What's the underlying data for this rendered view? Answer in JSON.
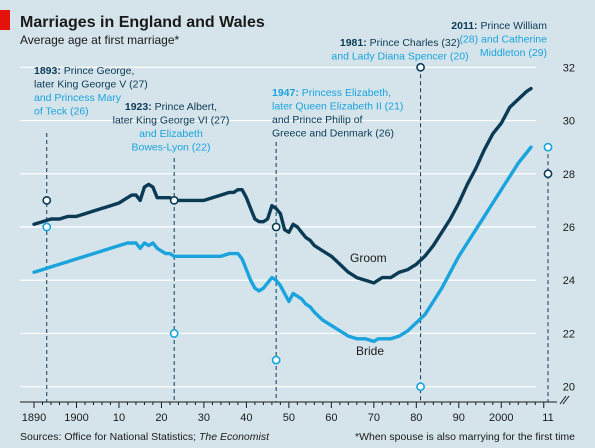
{
  "chart_data": {
    "type": "line",
    "title": "Marriages in England and Wales",
    "subtitle": "Average age at first marriage*",
    "xlabel": "",
    "ylabel": "",
    "xlim": [
      1890,
      2011
    ],
    "ylim": [
      19.5,
      32.5
    ],
    "grid": true,
    "x_tick_labels": [
      "1890",
      "1900",
      "10",
      "20",
      "30",
      "40",
      "50",
      "60",
      "70",
      "80",
      "90",
      "2000",
      "11"
    ],
    "y_ticks": [
      20,
      22,
      24,
      26,
      28,
      30,
      32
    ],
    "colors": {
      "groom": "#0b3a55",
      "bride": "#1aa3dd",
      "background": "#d5e4eb",
      "red_tag": "#e3120b"
    },
    "series": [
      {
        "name": "Groom",
        "key": "groom",
        "x": [
          1890,
          1892,
          1894,
          1896,
          1898,
          1900,
          1902,
          1904,
          1906,
          1908,
          1910,
          1912,
          1913,
          1914,
          1915,
          1916,
          1917,
          1918,
          1919,
          1920,
          1921,
          1922,
          1923,
          1924,
          1926,
          1928,
          1930,
          1932,
          1934,
          1936,
          1937,
          1938,
          1939,
          1940,
          1941,
          1942,
          1943,
          1944,
          1945,
          1946,
          1947,
          1948,
          1949,
          1950,
          1951,
          1952,
          1953,
          1954,
          1955,
          1956,
          1958,
          1960,
          1962,
          1964,
          1966,
          1968,
          1970,
          1971,
          1972,
          1974,
          1976,
          1978,
          1980,
          1982,
          1984,
          1986,
          1988,
          1990,
          1992,
          1994,
          1996,
          1998,
          2000,
          2002,
          2004,
          2006,
          2007
        ],
        "y": [
          26.1,
          26.2,
          26.3,
          26.3,
          26.4,
          26.4,
          26.5,
          26.6,
          26.7,
          26.8,
          26.9,
          27.1,
          27.2,
          27.2,
          27.0,
          27.5,
          27.6,
          27.5,
          27.1,
          27.1,
          27.1,
          27.1,
          27.0,
          27.0,
          27.0,
          27.0,
          27.0,
          27.1,
          27.2,
          27.3,
          27.3,
          27.4,
          27.4,
          27.1,
          26.7,
          26.3,
          26.2,
          26.2,
          26.3,
          26.8,
          26.7,
          26.5,
          25.9,
          25.8,
          26.1,
          26.0,
          25.8,
          25.6,
          25.5,
          25.3,
          25.1,
          24.9,
          24.6,
          24.3,
          24.1,
          24.0,
          23.9,
          24.0,
          24.1,
          24.1,
          24.3,
          24.4,
          24.6,
          24.9,
          25.3,
          25.8,
          26.3,
          26.9,
          27.6,
          28.2,
          28.9,
          29.5,
          29.9,
          30.5,
          30.8,
          31.1,
          31.2
        ]
      },
      {
        "name": "Bride",
        "key": "bride",
        "x": [
          1890,
          1892,
          1894,
          1896,
          1898,
          1900,
          1902,
          1904,
          1906,
          1908,
          1910,
          1912,
          1914,
          1915,
          1916,
          1917,
          1918,
          1919,
          1920,
          1921,
          1922,
          1923,
          1924,
          1926,
          1928,
          1930,
          1932,
          1934,
          1936,
          1938,
          1939,
          1940,
          1941,
          1942,
          1943,
          1944,
          1945,
          1946,
          1947,
          1948,
          1949,
          1950,
          1951,
          1952,
          1953,
          1954,
          1955,
          1956,
          1958,
          1960,
          1962,
          1964,
          1966,
          1968,
          1970,
          1971,
          1972,
          1974,
          1976,
          1978,
          1980,
          1982,
          1984,
          1986,
          1988,
          1990,
          1992,
          1994,
          1996,
          1998,
          2000,
          2002,
          2004,
          2006,
          2007
        ],
        "y": [
          24.3,
          24.4,
          24.5,
          24.6,
          24.7,
          24.8,
          24.9,
          25.0,
          25.1,
          25.2,
          25.3,
          25.4,
          25.4,
          25.2,
          25.4,
          25.3,
          25.4,
          25.2,
          25.1,
          25.0,
          25.0,
          24.9,
          24.9,
          24.9,
          24.9,
          24.9,
          24.9,
          24.9,
          25.0,
          25.0,
          24.8,
          24.4,
          24.0,
          23.7,
          23.6,
          23.7,
          23.9,
          24.1,
          24.0,
          23.8,
          23.5,
          23.2,
          23.5,
          23.4,
          23.3,
          23.1,
          23.0,
          22.8,
          22.5,
          22.3,
          22.1,
          21.9,
          21.8,
          21.8,
          21.7,
          21.8,
          21.8,
          21.8,
          21.9,
          22.1,
          22.4,
          22.7,
          23.2,
          23.7,
          24.3,
          24.9,
          25.4,
          25.9,
          26.4,
          26.9,
          27.4,
          27.9,
          28.4,
          28.8,
          29.0
        ]
      }
    ],
    "annotations": [
      {
        "key": "a1893",
        "year": 1893,
        "groom_age": 27,
        "bride_age": 26,
        "lines": [
          {
            "t": "1893: Prince George,",
            "c": "groom",
            "b": true
          },
          {
            "t": "later King George V (27)",
            "c": "groom",
            "b": false
          },
          {
            "t": "and Princess Mary",
            "c": "bride",
            "b": false
          },
          {
            "t": "of Teck (26)",
            "c": "bride",
            "b": false
          }
        ]
      },
      {
        "key": "a1923",
        "year": 1923,
        "groom_age": 27,
        "bride_age": 22,
        "lines": [
          {
            "t": "1923: Prince Albert,",
            "c": "groom",
            "b": true
          },
          {
            "t": "later King George VI (27)",
            "c": "groom",
            "b": false
          },
          {
            "t": "and Elizabeth",
            "c": "bride",
            "b": false
          },
          {
            "t": "Bowes-Lyon (22)",
            "c": "bride",
            "b": false
          }
        ]
      },
      {
        "key": "a1947",
        "year": 1947,
        "groom_age": 26,
        "bride_age": 21,
        "lines": [
          {
            "t": "1947: Princess Elizabeth,",
            "c": "bride",
            "b": true
          },
          {
            "t": "later Queen Elizabeth II (21)",
            "c": "bride",
            "b": false
          },
          {
            "t": "and Prince Philip of",
            "c": "groom",
            "b": false
          },
          {
            "t": "Greece and Denmark (26)",
            "c": "groom",
            "b": false
          }
        ]
      },
      {
        "key": "a1981",
        "year": 1981,
        "groom_age": 32,
        "bride_age": 20,
        "lines": [
          {
            "t": "1981: Prince Charles (32)",
            "c": "groom",
            "b": true
          },
          {
            "t": "and Lady Diana Spencer (20)",
            "c": "bride",
            "b": false
          }
        ]
      },
      {
        "key": "a2011",
        "year": 2011,
        "groom_age": 28,
        "bride_age": 29,
        "lines": [
          {
            "t": "2011: Prince William",
            "c": "groom",
            "b": true
          },
          {
            "t": "(28) and Catherine",
            "c": "bride",
            "b": false
          },
          {
            "t": "Middleton (29)",
            "c": "bride",
            "b": false
          }
        ]
      }
    ],
    "source_label": "Sources: Office for National Statistics; ",
    "source_italic": "The Economist",
    "footnote": "*When spouse is also marrying for the first time"
  }
}
